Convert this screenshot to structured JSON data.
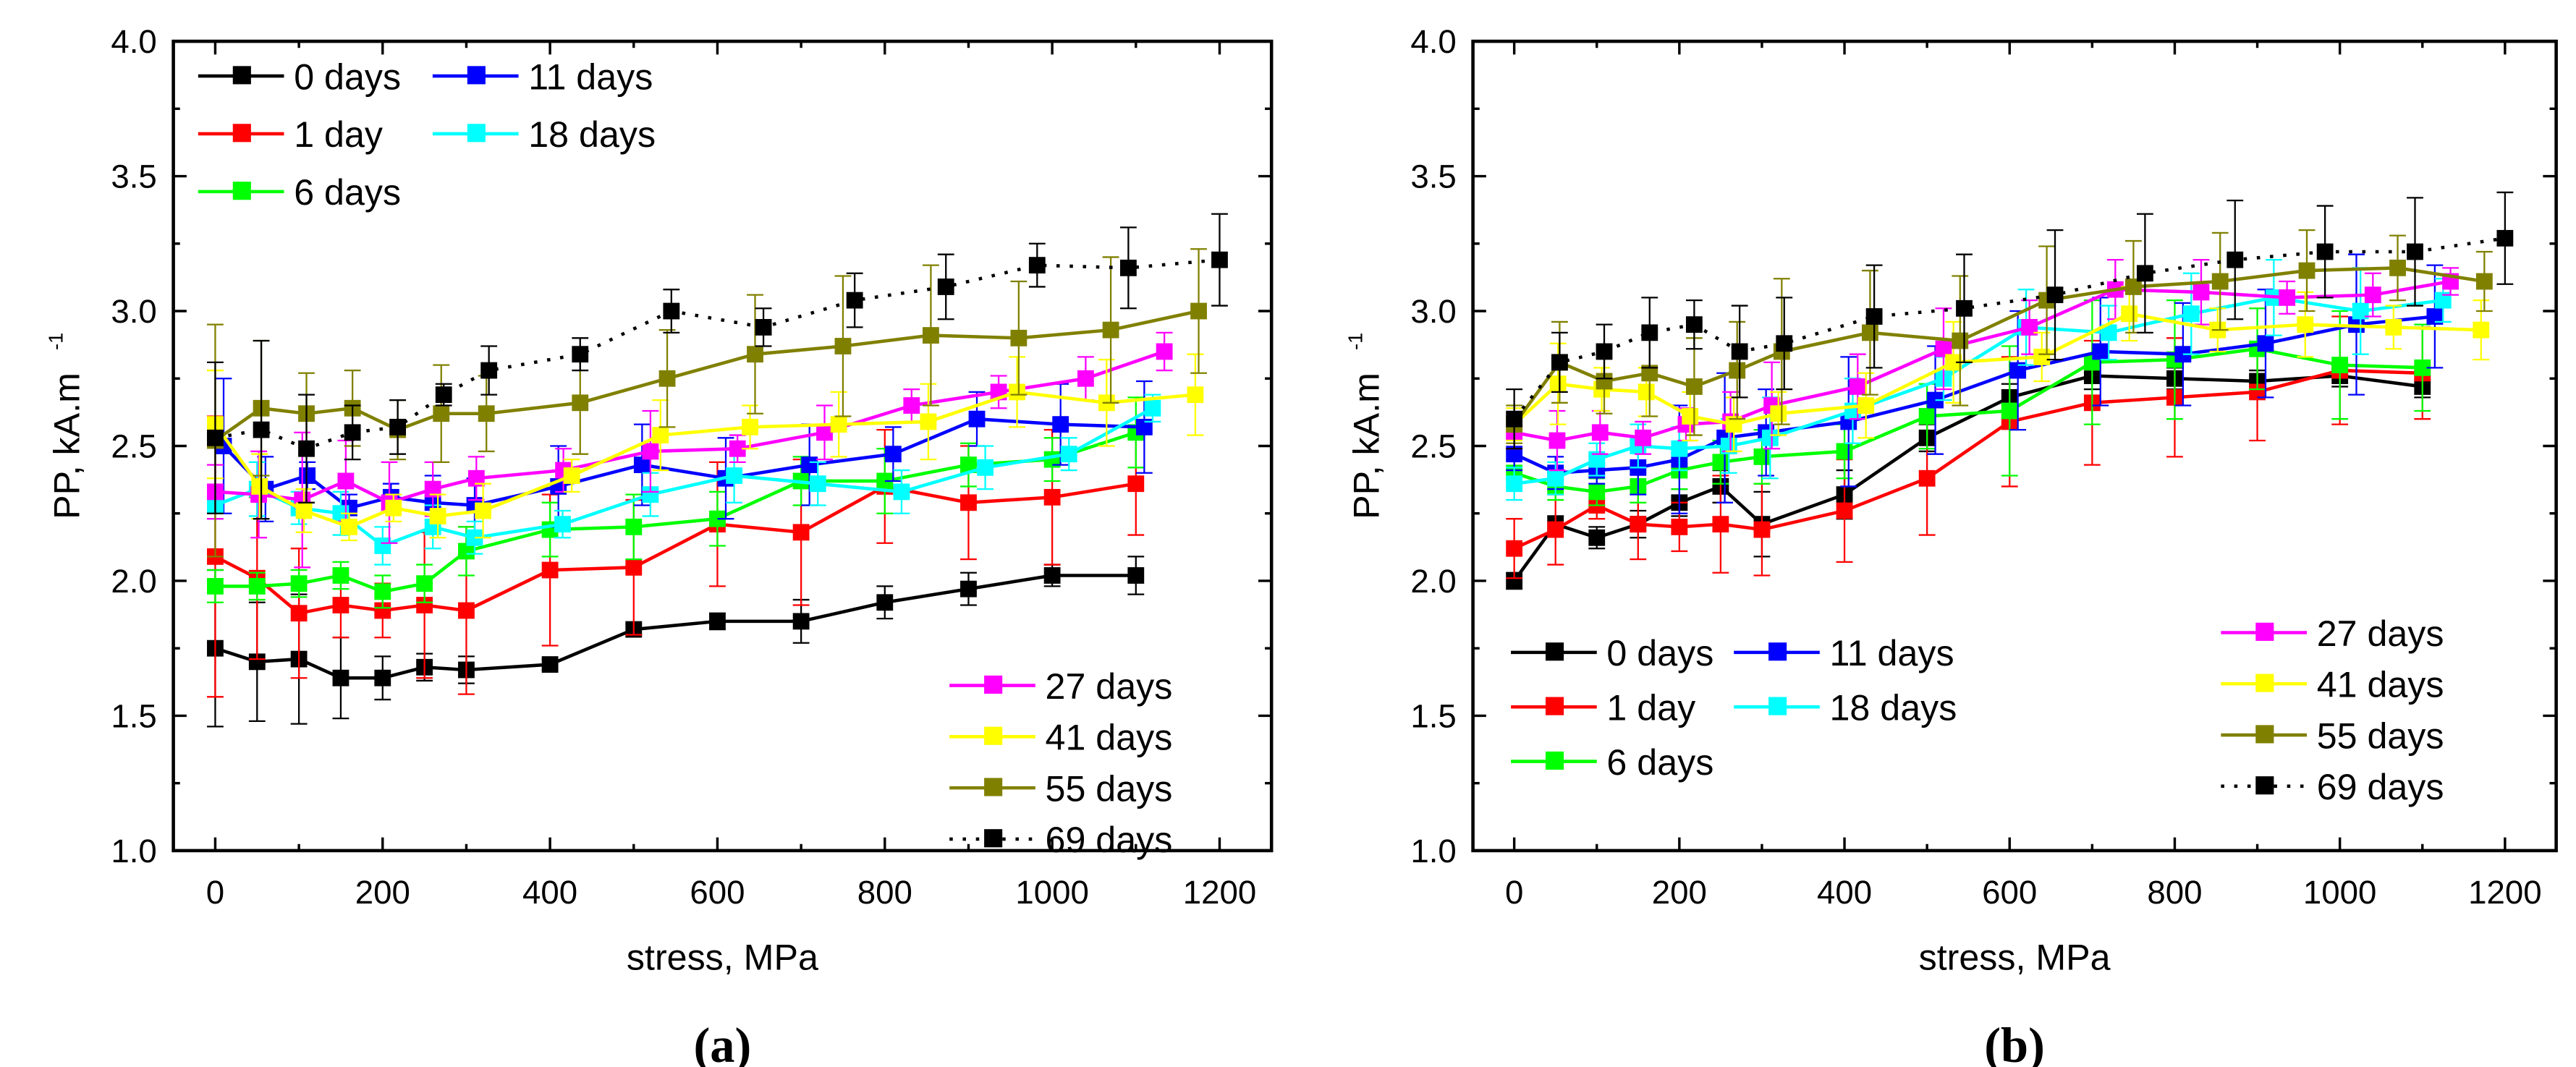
{
  "chart_data": [
    {
      "type": "line",
      "panel_label": "(a)",
      "panel_letter": "a",
      "xlabel": "stress, MPa",
      "ylabel": "PP, kA.m",
      "ylabel_sup": "-1",
      "xlim": [
        -50,
        1262
      ],
      "ylim": [
        1.0,
        4.0
      ],
      "xticks": [
        "0",
        "200",
        "400",
        "600",
        "800",
        "1000",
        "1200"
      ],
      "yticks": [
        "1.0",
        "1.5",
        "2.0",
        "2.5",
        "3.0",
        "3.5",
        "4.0"
      ],
      "legend_placement": [
        "top-left",
        "bottom-right"
      ],
      "series": [
        {
          "name": "0 days",
          "color": "#000000",
          "style": "solid",
          "x": [
            0,
            50,
            100,
            150,
            200,
            250,
            300,
            400,
            500,
            600,
            700,
            800,
            900,
            1000,
            1100
          ],
          "y": [
            1.75,
            1.7,
            1.71,
            1.64,
            1.64,
            1.68,
            1.67,
            1.69,
            1.82,
            1.85,
            1.85,
            1.92,
            1.97,
            2.02,
            2.02
          ],
          "err": [
            0.29,
            0.22,
            0.24,
            0.15,
            0.08,
            0.05,
            0.05,
            0.02,
            0.02,
            0.03,
            0.08,
            0.06,
            0.06,
            0.04,
            0.07
          ]
        },
        {
          "name": "1 day",
          "color": "#ff0000",
          "style": "solid",
          "x": [
            0,
            50,
            100,
            150,
            200,
            250,
            300,
            400,
            500,
            600,
            700,
            800,
            900,
            1000,
            1100
          ],
          "y": [
            2.09,
            2.01,
            1.88,
            1.91,
            1.89,
            1.91,
            1.89,
            2.04,
            2.05,
            2.21,
            2.18,
            2.35,
            2.29,
            2.31,
            2.36
          ],
          "err": [
            0.52,
            0.3,
            0.24,
            0.12,
            0.1,
            0.27,
            0.31,
            0.28,
            0.25,
            0.23,
            0.27,
            0.21,
            0.21,
            0.25,
            0.19
          ]
        },
        {
          "name": "6 days",
          "color": "#00ff00",
          "style": "solid",
          "x": [
            0,
            50,
            100,
            150,
            200,
            250,
            300,
            400,
            500,
            600,
            700,
            800,
            900,
            1000,
            1100
          ],
          "y": [
            1.98,
            1.98,
            1.99,
            2.02,
            1.96,
            1.99,
            2.11,
            2.19,
            2.2,
            2.23,
            2.37,
            2.37,
            2.43,
            2.45,
            2.55
          ],
          "err": [
            0.06,
            0.05,
            0.05,
            0.05,
            0.06,
            0.07,
            0.09,
            0.1,
            0.12,
            0.1,
            0.09,
            0.12,
            0.08,
            0.08,
            0.13
          ]
        },
        {
          "name": "11 days",
          "color": "#0000ff",
          "style": "solid",
          "x": [
            10,
            60,
            110,
            160,
            210,
            260,
            310,
            410,
            510,
            610,
            710,
            810,
            910,
            1010,
            1110
          ],
          "y": [
            2.5,
            2.34,
            2.39,
            2.27,
            2.31,
            2.29,
            2.28,
            2.35,
            2.43,
            2.38,
            2.43,
            2.47,
            2.6,
            2.58,
            2.57
          ],
          "err": [
            0.25,
            0.12,
            0.05,
            0.05,
            0.05,
            0.1,
            0.1,
            0.15,
            0.15,
            0.15,
            0.15,
            0.1,
            0.1,
            0.15,
            0.17
          ]
        },
        {
          "name": "18 days",
          "color": "#00ffff",
          "style": "solid",
          "x": [
            0,
            50,
            100,
            150,
            200,
            260,
            310,
            415,
            520,
            620,
            720,
            820,
            920,
            1020,
            1120
          ],
          "y": [
            2.28,
            2.34,
            2.27,
            2.25,
            2.13,
            2.2,
            2.16,
            2.21,
            2.32,
            2.39,
            2.36,
            2.33,
            2.42,
            2.47,
            2.64
          ],
          "err": [
            0.05,
            0.1,
            0.06,
            0.08,
            0.07,
            0.08,
            0.06,
            0.05,
            0.08,
            0.1,
            0.08,
            0.08,
            0.08,
            0.06,
            0.05
          ]
        },
        {
          "name": "27 days",
          "color": "#ff00ff",
          "style": "solid",
          "x": [
            0,
            52,
            104,
            156,
            208,
            260,
            312,
            416,
            520,
            624,
            728,
            832,
            936,
            1040,
            1134
          ],
          "y": [
            2.33,
            2.32,
            2.3,
            2.37,
            2.29,
            2.34,
            2.38,
            2.41,
            2.48,
            2.49,
            2.55,
            2.65,
            2.7,
            2.75,
            2.85
          ],
          "err": [
            0.1,
            0.16,
            0.25,
            0.15,
            0.15,
            0.1,
            0.08,
            0.08,
            0.15,
            0.05,
            0.1,
            0.06,
            0.06,
            0.08,
            0.07
          ]
        },
        {
          "name": "41 days",
          "color": "#ffff00",
          "style": "solid",
          "x": [
            0,
            53,
            106,
            160,
            213,
            266,
            320,
            426,
            532,
            639,
            745,
            852,
            958,
            1065,
            1171
          ],
          "y": [
            2.58,
            2.35,
            2.26,
            2.2,
            2.27,
            2.24,
            2.26,
            2.39,
            2.54,
            2.57,
            2.58,
            2.59,
            2.7,
            2.66,
            2.69
          ],
          "err": [
            0.2,
            0.12,
            0.08,
            0.05,
            0.05,
            0.08,
            0.1,
            0.06,
            0.13,
            0.08,
            0.12,
            0.14,
            0.13,
            0.16,
            0.15
          ]
        },
        {
          "name": "55 days",
          "color": "#808000",
          "style": "solid",
          "x": [
            0,
            55,
            109,
            164,
            218,
            270,
            324,
            436,
            540,
            645,
            750,
            855,
            960,
            1070,
            1175
          ],
          "y": [
            2.52,
            2.64,
            2.62,
            2.64,
            2.56,
            2.62,
            2.62,
            2.66,
            2.75,
            2.84,
            2.87,
            2.91,
            2.9,
            2.93,
            3.0
          ],
          "err": [
            0.43,
            0.25,
            0.15,
            0.14,
            0.11,
            0.18,
            0.14,
            0.19,
            0.18,
            0.22,
            0.26,
            0.26,
            0.21,
            0.27,
            0.23
          ]
        },
        {
          "name": "69 days",
          "color": "#000000",
          "style": "dotted",
          "x": [
            0,
            55,
            109,
            164,
            218,
            273,
            327,
            436,
            545,
            655,
            764,
            873,
            982,
            1091,
            1200
          ],
          "y": [
            2.53,
            2.56,
            2.49,
            2.55,
            2.57,
            2.69,
            2.78,
            2.84,
            3.0,
            2.94,
            3.04,
            3.09,
            3.17,
            3.16,
            3.19
          ],
          "err": [
            0.28,
            0.33,
            0.2,
            0.1,
            0.1,
            0.04,
            0.09,
            0.06,
            0.08,
            0.07,
            0.1,
            0.12,
            0.08,
            0.15,
            0.17
          ]
        }
      ]
    },
    {
      "type": "line",
      "panel_label": "(b)",
      "panel_letter": "b",
      "xlabel": "stress, MPa",
      "ylabel": "PP, kA.m",
      "ylabel_sup": "-1",
      "xlim": [
        -50,
        1262
      ],
      "ylim": [
        1.0,
        4.0
      ],
      "xticks": [
        "0",
        "200",
        "400",
        "600",
        "800",
        "1000",
        "1200"
      ],
      "yticks": [
        "1.0",
        "1.5",
        "2.0",
        "2.5",
        "3.0",
        "3.5",
        "4.0"
      ],
      "legend_placement": [
        "bottom-left",
        "bottom-right"
      ],
      "series": [
        {
          "name": "0 days",
          "color": "#000000",
          "style": "solid",
          "x": [
            0,
            50,
            100,
            150,
            200,
            250,
            300,
            400,
            500,
            600,
            700,
            800,
            900,
            1000,
            1100
          ],
          "y": [
            2.0,
            2.21,
            2.16,
            2.21,
            2.29,
            2.35,
            2.21,
            2.32,
            2.53,
            2.68,
            2.76,
            2.75,
            2.74,
            2.76,
            2.72
          ],
          "err": [
            0.03,
            0.03,
            0.04,
            0.05,
            0.05,
            0.06,
            0.12,
            0.09,
            0.05,
            0.05,
            0.05,
            0.04,
            0.04,
            0.04,
            0.04
          ]
        },
        {
          "name": "1 day",
          "color": "#ff0000",
          "style": "solid",
          "x": [
            0,
            50,
            100,
            150,
            200,
            250,
            300,
            400,
            500,
            600,
            700,
            800,
            900,
            1000,
            1100
          ],
          "y": [
            2.12,
            2.19,
            2.28,
            2.21,
            2.2,
            2.21,
            2.19,
            2.26,
            2.38,
            2.59,
            2.66,
            2.68,
            2.7,
            2.78,
            2.77
          ],
          "err": [
            0.11,
            0.13,
            0.05,
            0.13,
            0.09,
            0.18,
            0.17,
            0.19,
            0.21,
            0.24,
            0.23,
            0.22,
            0.18,
            0.2,
            0.17
          ]
        },
        {
          "name": "6 days",
          "color": "#00ff00",
          "style": "solid",
          "x": [
            0,
            50,
            100,
            150,
            200,
            250,
            300,
            400,
            500,
            600,
            700,
            800,
            900,
            1000,
            1100
          ],
          "y": [
            2.4,
            2.35,
            2.33,
            2.35,
            2.41,
            2.44,
            2.46,
            2.48,
            2.61,
            2.63,
            2.81,
            2.82,
            2.86,
            2.8,
            2.79
          ],
          "err": [
            0.05,
            0.05,
            0.05,
            0.06,
            0.07,
            0.08,
            0.1,
            0.1,
            0.12,
            0.24,
            0.23,
            0.22,
            0.15,
            0.2,
            0.16
          ]
        },
        {
          "name": "11 days",
          "color": "#0000ff",
          "style": "solid",
          "x": [
            0,
            50,
            100,
            150,
            200,
            255,
            305,
            405,
            510,
            610,
            710,
            810,
            910,
            1020,
            1115
          ],
          "y": [
            2.47,
            2.4,
            2.41,
            2.42,
            2.45,
            2.53,
            2.55,
            2.59,
            2.67,
            2.78,
            2.85,
            2.84,
            2.88,
            2.95,
            2.98
          ],
          "err": [
            0.06,
            0.06,
            0.05,
            0.1,
            0.2,
            0.24,
            0.16,
            0.24,
            0.2,
            0.22,
            0.2,
            0.19,
            0.2,
            0.26,
            0.19
          ]
        },
        {
          "name": "18 days",
          "color": "#00ffff",
          "style": "solid",
          "x": [
            0,
            50,
            100,
            150,
            200,
            260,
            310,
            410,
            520,
            620,
            720,
            820,
            920,
            1025,
            1125
          ],
          "y": [
            2.36,
            2.38,
            2.45,
            2.5,
            2.49,
            2.5,
            2.53,
            2.63,
            2.75,
            2.94,
            2.92,
            2.99,
            3.05,
            3.0,
            3.04
          ],
          "err": [
            0.06,
            0.06,
            0.06,
            0.08,
            0.08,
            0.1,
            0.15,
            0.12,
            0.08,
            0.14,
            0.1,
            0.15,
            0.14,
            0.16,
            0.08
          ]
        },
        {
          "name": "27 days",
          "color": "#ff00ff",
          "style": "solid",
          "x": [
            0,
            52,
            104,
            156,
            208,
            262,
            312,
            416,
            520,
            624,
            728,
            832,
            936,
            1040,
            1134
          ],
          "y": [
            2.55,
            2.52,
            2.55,
            2.53,
            2.58,
            2.59,
            2.65,
            2.72,
            2.86,
            2.94,
            3.08,
            3.07,
            3.05,
            3.06,
            3.11
          ],
          "err": [
            0.06,
            0.11,
            0.08,
            0.06,
            0.06,
            0.11,
            0.16,
            0.12,
            0.15,
            0.1,
            0.11,
            0.12,
            0.06,
            0.08,
            0.05
          ]
        },
        {
          "name": "41 days",
          "color": "#ffff00",
          "style": "solid",
          "x": [
            0,
            53,
            106,
            160,
            213,
            266,
            320,
            426,
            532,
            639,
            745,
            852,
            958,
            1065,
            1171
          ],
          "y": [
            2.58,
            2.73,
            2.71,
            2.7,
            2.61,
            2.58,
            2.62,
            2.65,
            2.81,
            2.83,
            2.99,
            2.93,
            2.95,
            2.94,
            2.93
          ],
          "err": [
            0.06,
            0.15,
            0.08,
            0.09,
            0.09,
            0.1,
            0.08,
            0.12,
            0.15,
            0.09,
            0.1,
            0.08,
            0.12,
            0.08,
            0.11
          ]
        },
        {
          "name": "55 days",
          "color": "#808000",
          "style": "solid",
          "x": [
            0,
            55,
            109,
            164,
            218,
            270,
            324,
            431,
            540,
            645,
            750,
            855,
            960,
            1070,
            1175
          ],
          "y": [
            2.58,
            2.81,
            2.74,
            2.77,
            2.72,
            2.78,
            2.85,
            2.92,
            2.89,
            3.04,
            3.09,
            3.11,
            3.15,
            3.16,
            3.11
          ],
          "err": [
            0.07,
            0.15,
            0.12,
            0.16,
            0.18,
            0.18,
            0.27,
            0.23,
            0.24,
            0.2,
            0.17,
            0.18,
            0.15,
            0.12,
            0.11
          ]
        },
        {
          "name": "69 days",
          "color": "#000000",
          "style": "dotted",
          "x": [
            0,
            55,
            109,
            164,
            218,
            273,
            327,
            436,
            545,
            655,
            764,
            873,
            982,
            1091,
            1200
          ],
          "y": [
            2.6,
            2.81,
            2.85,
            2.92,
            2.95,
            2.85,
            2.88,
            2.98,
            3.01,
            3.06,
            3.14,
            3.19,
            3.22,
            3.22,
            3.27
          ],
          "err": [
            0.11,
            0.11,
            0.1,
            0.13,
            0.09,
            0.17,
            0.17,
            0.19,
            0.2,
            0.24,
            0.22,
            0.22,
            0.17,
            0.2,
            0.17
          ]
        }
      ]
    }
  ]
}
